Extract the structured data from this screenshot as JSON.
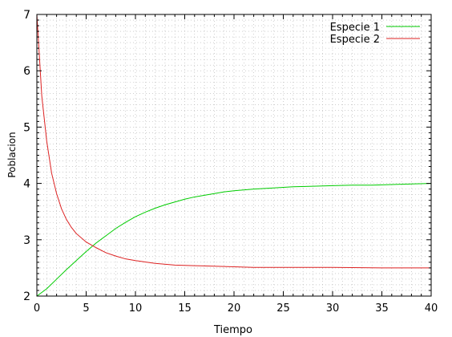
{
  "chart_data": {
    "type": "line",
    "title": "",
    "xlabel": "Tiempo",
    "ylabel": "Poblacion",
    "xlim": [
      0,
      40
    ],
    "ylim": [
      2,
      7
    ],
    "xticks": [
      0,
      5,
      10,
      15,
      20,
      25,
      30,
      35,
      40
    ],
    "yticks": [
      2,
      3,
      4,
      5,
      6,
      7
    ],
    "grid": true,
    "legend": "top-right",
    "series": [
      {
        "name": "Especie 1",
        "color": "#00cc00",
        "x": [
          0,
          1,
          2,
          3,
          4,
          5,
          6,
          7,
          8,
          9,
          10,
          11,
          12,
          13,
          14,
          15,
          16,
          17,
          18,
          19,
          20,
          22,
          24,
          26,
          28,
          30,
          32,
          34,
          36,
          38,
          40
        ],
        "y": [
          2.0,
          2.13,
          2.3,
          2.47,
          2.63,
          2.79,
          2.94,
          3.07,
          3.2,
          3.31,
          3.41,
          3.49,
          3.56,
          3.62,
          3.67,
          3.72,
          3.76,
          3.79,
          3.82,
          3.85,
          3.87,
          3.9,
          3.92,
          3.94,
          3.95,
          3.96,
          3.97,
          3.97,
          3.98,
          3.99,
          4.0
        ]
      },
      {
        "name": "Especie 2",
        "color": "#dd2222",
        "x": [
          0,
          0.5,
          1,
          1.5,
          2,
          2.5,
          3,
          3.5,
          4,
          5,
          6,
          7,
          8,
          9,
          10,
          12,
          14,
          16,
          18,
          20,
          22,
          25,
          30,
          35,
          40
        ],
        "y": [
          7.0,
          5.55,
          4.75,
          4.18,
          3.82,
          3.55,
          3.36,
          3.22,
          3.11,
          2.96,
          2.86,
          2.77,
          2.71,
          2.66,
          2.63,
          2.58,
          2.55,
          2.54,
          2.53,
          2.52,
          2.51,
          2.51,
          2.51,
          2.5,
          2.5
        ]
      }
    ]
  }
}
